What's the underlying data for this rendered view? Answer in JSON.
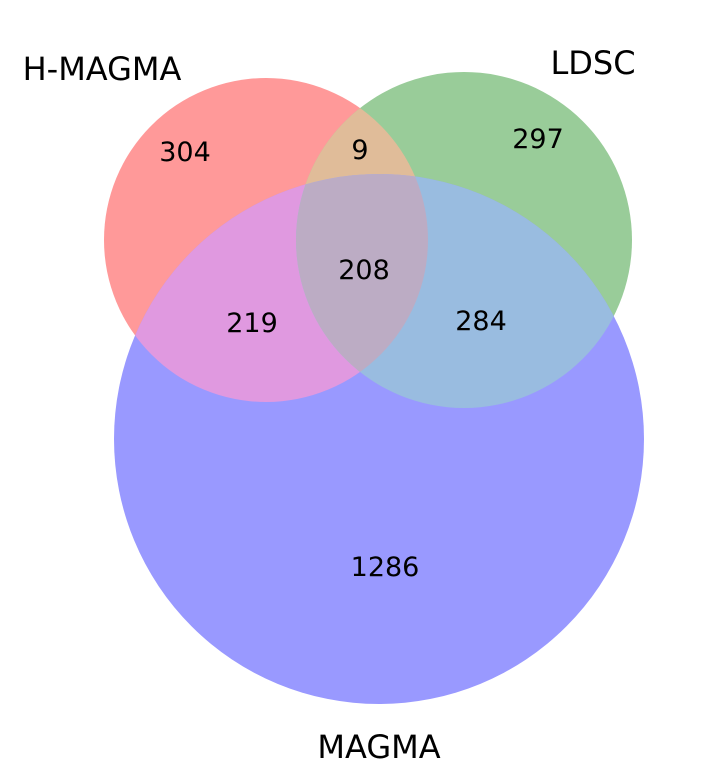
{
  "sets": [
    {
      "id": "hmagma",
      "label": "H-MAGMA",
      "color": "#ff9999"
    },
    {
      "id": "ldsc",
      "label": "LDSC",
      "color": "#99cc99"
    },
    {
      "id": "magma",
      "label": "MAGMA",
      "color": "#9999ff"
    }
  ],
  "regions": {
    "hmagma_only": "304",
    "ldsc_only": "297",
    "magma_only": "1286",
    "hmagma_ldsc": "9",
    "hmagma_magma": "219",
    "ldsc_magma": "284",
    "all_three": "208"
  },
  "region_colors": {
    "hmagma_ldsc": "#e0bc99",
    "hmagma_magma": "#e099e0",
    "ldsc_magma": "#99bce0",
    "all_three": "#bcacc4"
  }
}
